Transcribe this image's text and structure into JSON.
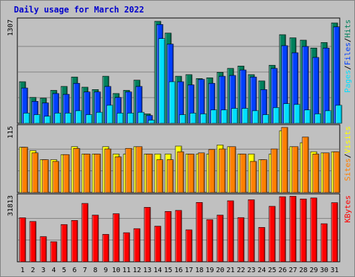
{
  "window_title": "Daily usage for March 2022",
  "chart_data": [
    {
      "type": "bar",
      "panel": "hits-files-pages",
      "ymax_label": "1307",
      "ymax": 1307,
      "right_legend": [
        "Pages",
        "/",
        "Files",
        "/",
        "Hits"
      ],
      "colors": {
        "Hits": "#00805c",
        "Files": "#0040ff",
        "Pages": "#00e0ff"
      },
      "series": [
        {
          "name": "Hits",
          "values": [
            530,
            330,
            320,
            420,
            470,
            590,
            460,
            430,
            600,
            380,
            420,
            550,
            120,
            1300,
            1150,
            600,
            620,
            570,
            580,
            650,
            700,
            730,
            620,
            540,
            740,
            1130,
            1090,
            1060,
            960,
            1030,
            1280
          ]
        },
        {
          "name": "Files",
          "values": [
            450,
            280,
            260,
            380,
            370,
            510,
            400,
            400,
            470,
            330,
            400,
            470,
            100,
            1260,
            1010,
            530,
            490,
            560,
            510,
            600,
            610,
            680,
            590,
            430,
            700,
            990,
            900,
            980,
            840,
            960,
            1230
          ]
        },
        {
          "name": "Pages",
          "values": [
            130,
            110,
            90,
            130,
            130,
            160,
            110,
            140,
            230,
            130,
            130,
            140,
            40,
            1080,
            530,
            110,
            130,
            120,
            170,
            170,
            190,
            190,
            160,
            110,
            200,
            250,
            240,
            170,
            120,
            160,
            230
          ]
        }
      ]
    },
    {
      "type": "bar",
      "panel": "visits-sites",
      "ymax_label": "115",
      "ymax": 115,
      "right_legend": [
        "Sites",
        "/",
        "Visits"
      ],
      "colors": {
        "Visits": "#ffff00",
        "Sites": "#ff8000"
      },
      "series": [
        {
          "name": "Visits",
          "values": [
            80,
            74,
            58,
            58,
            67,
            81,
            68,
            68,
            81,
            68,
            68,
            81,
            68,
            68,
            68,
            82,
            68,
            68,
            68,
            84,
            81,
            68,
            68,
            58,
            68,
            109,
            81,
            88,
            72,
            70,
            72
          ]
        },
        {
          "name": "Sites",
          "values": [
            80,
            70,
            58,
            55,
            67,
            78,
            68,
            68,
            77,
            63,
            78,
            81,
            68,
            58,
            58,
            72,
            68,
            70,
            76,
            77,
            81,
            68,
            55,
            58,
            77,
            115,
            81,
            98,
            68,
            70,
            72
          ]
        }
      ]
    },
    {
      "type": "bar",
      "panel": "kbytes",
      "ymax_label": "31813",
      "ymax": 31813,
      "right_legend": [
        "KBytes"
      ],
      "colors": {
        "KBytes": "#ff0000"
      },
      "series": [
        {
          "name": "KBytes",
          "values": [
            21500,
            19700,
            12300,
            9800,
            18200,
            20200,
            28500,
            22800,
            13400,
            23500,
            14200,
            16200,
            26600,
            17400,
            24600,
            25100,
            15600,
            29000,
            20600,
            22800,
            29800,
            21600,
            30300,
            16800,
            27100,
            31800,
            32000,
            30700,
            31200,
            18600,
            28900
          ]
        }
      ]
    }
  ],
  "x_axis": {
    "labels": [
      "1",
      "2",
      "3",
      "4",
      "5",
      "6",
      "7",
      "8",
      "9",
      "10",
      "11",
      "12",
      "13",
      "14",
      "15",
      "16",
      "17",
      "18",
      "19",
      "20",
      "21",
      "22",
      "23",
      "24",
      "25",
      "26",
      "27",
      "28",
      "29",
      "30",
      "31"
    ],
    "weekend_days": [
      5,
      6,
      12,
      13,
      19,
      20,
      26,
      27
    ],
    "weekday_color": "#000000",
    "weekend_color": "#00805c"
  }
}
